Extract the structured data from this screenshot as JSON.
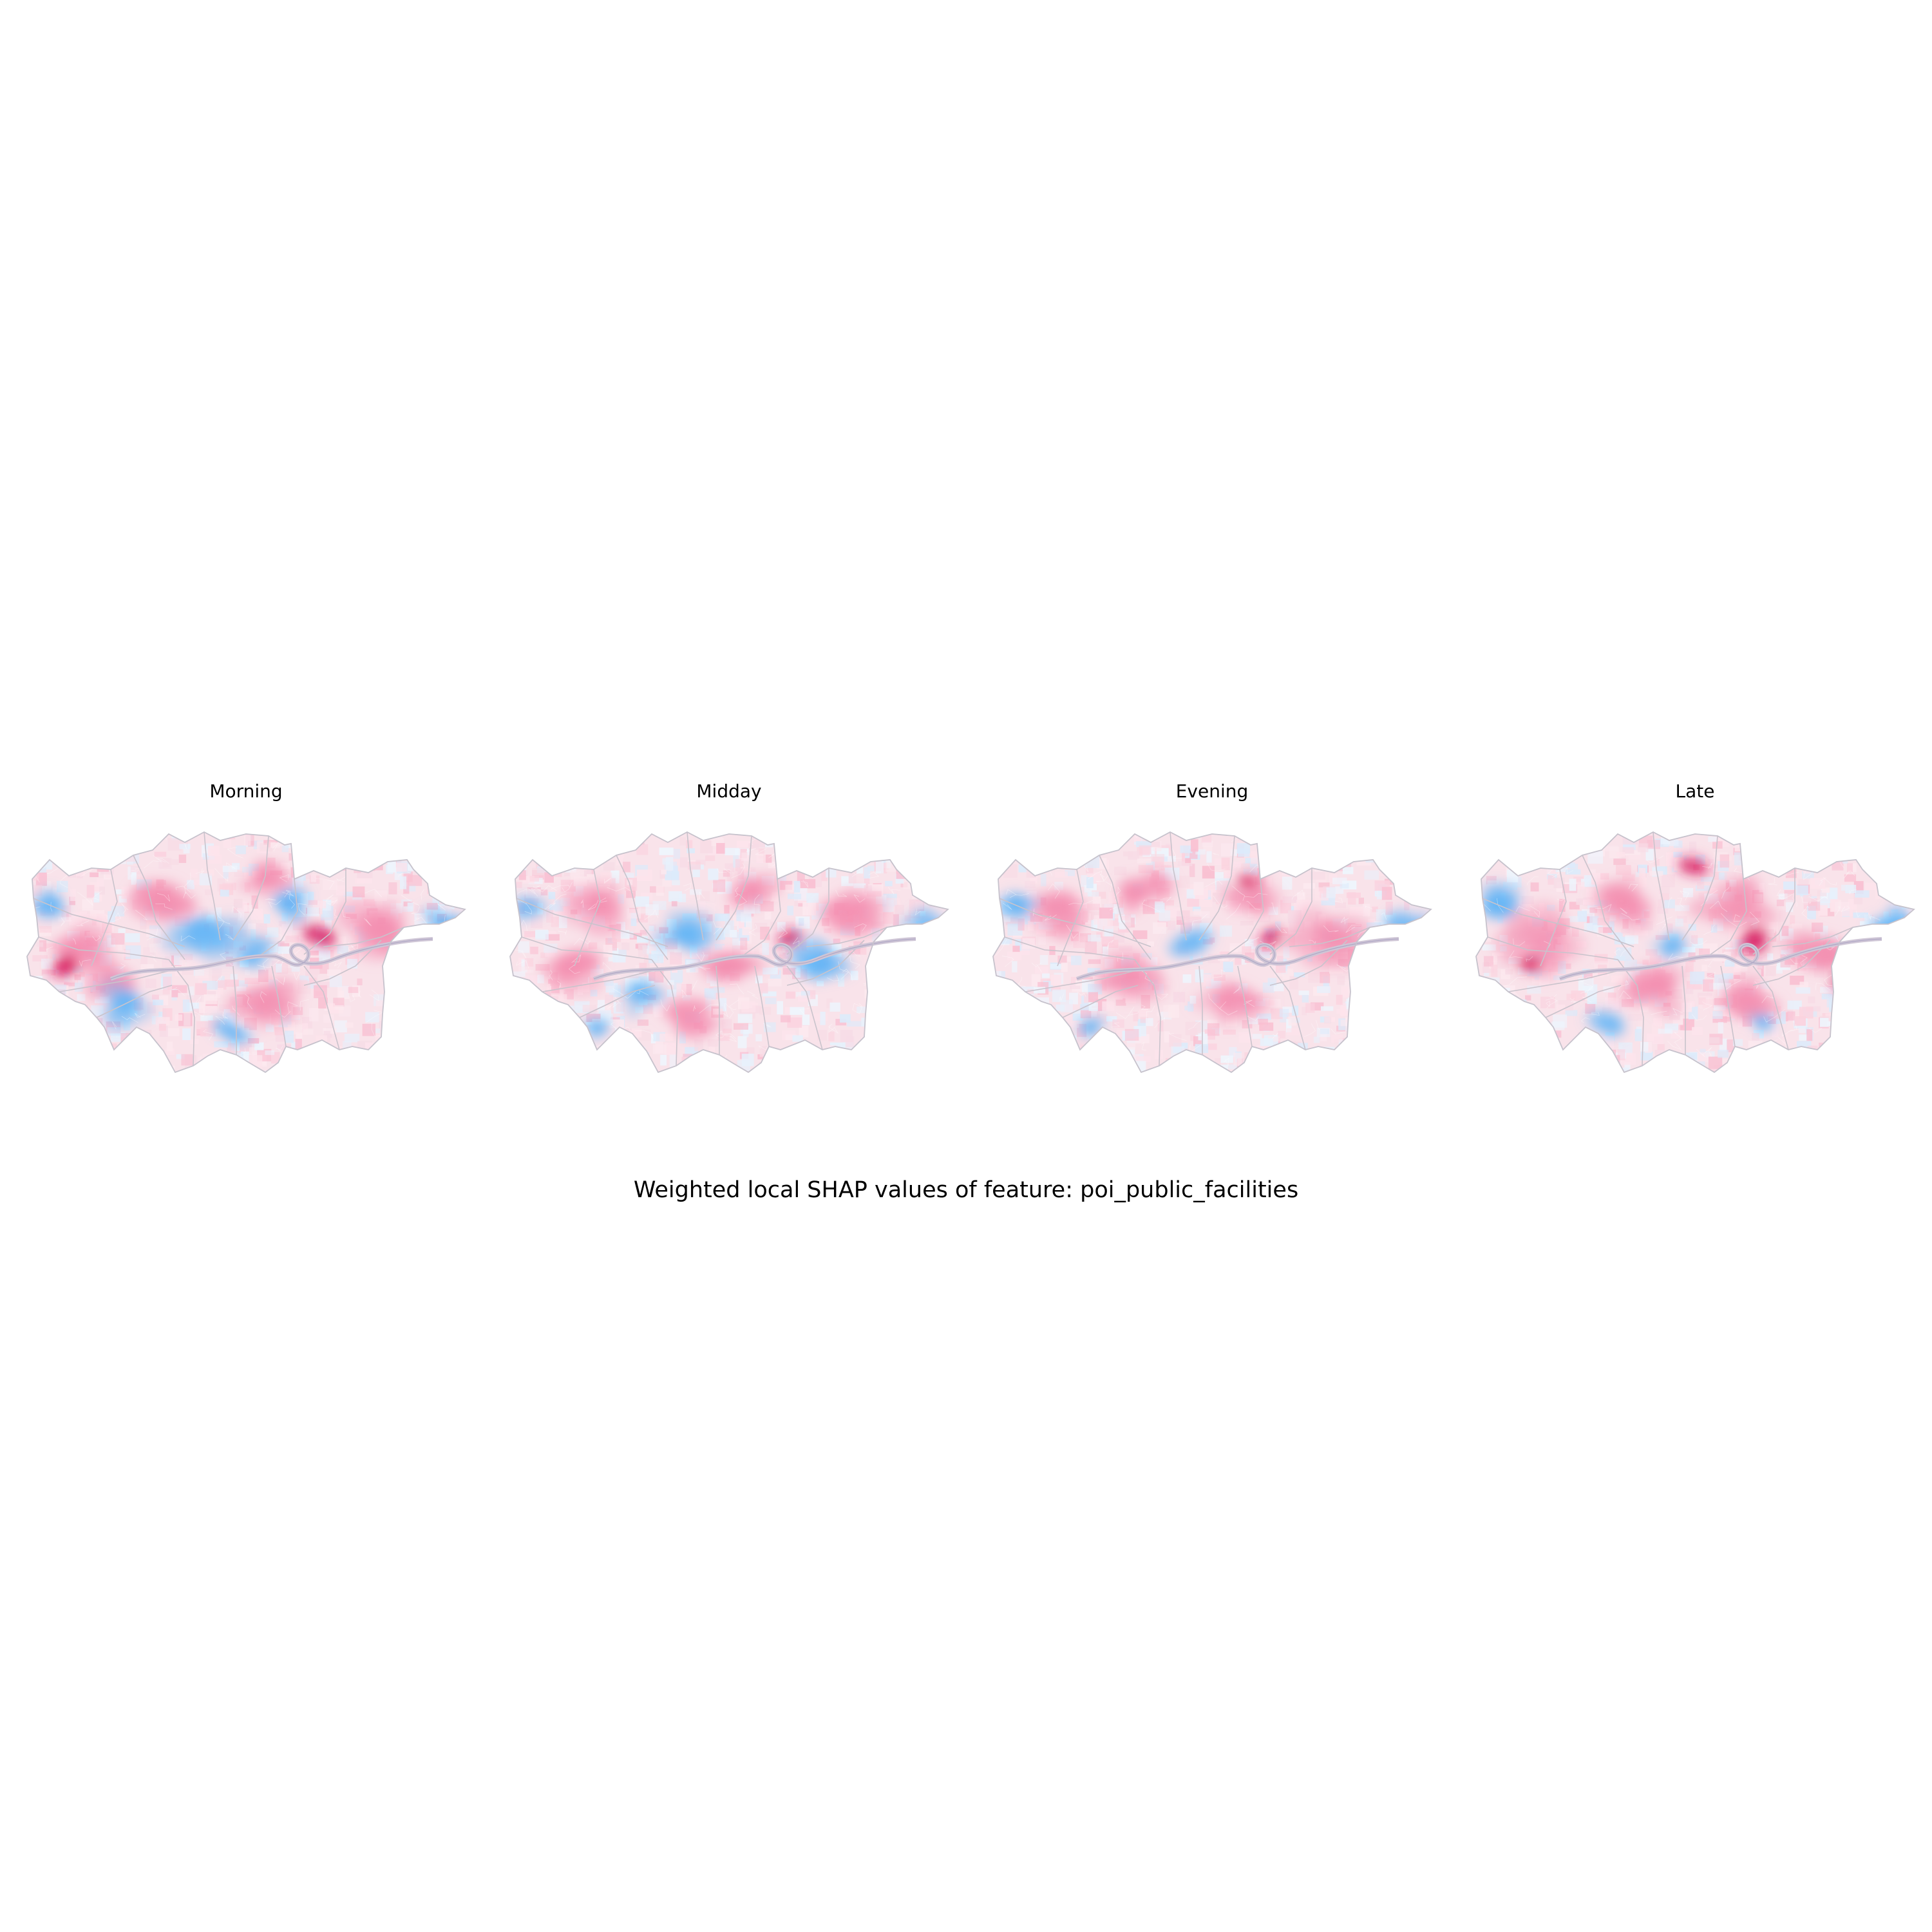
{
  "figure": {
    "title": "Weighted local SHAP values of feature: poi_public_facilities"
  },
  "panels": [
    {
      "title": "Morning",
      "hotspots": [
        {
          "k": "pink",
          "u": 0.32,
          "v": 0.3,
          "s": 0.09
        },
        {
          "k": "pink",
          "u": 0.55,
          "v": 0.2,
          "s": 0.07
        },
        {
          "k": "pink",
          "u": 0.12,
          "v": 0.48,
          "s": 0.08
        },
        {
          "k": "deep",
          "u": 0.66,
          "v": 0.44,
          "s": 0.05
        },
        {
          "k": "deep",
          "u": 0.08,
          "v": 0.55,
          "s": 0.05
        },
        {
          "k": "pink",
          "u": 0.8,
          "v": 0.4,
          "s": 0.1
        },
        {
          "k": "pink",
          "u": 0.55,
          "v": 0.7,
          "s": 0.1
        },
        {
          "k": "pink",
          "u": 0.2,
          "v": 0.62,
          "s": 0.07
        },
        {
          "k": "blue",
          "u": 0.4,
          "v": 0.42,
          "s": 0.1
        },
        {
          "k": "blue",
          "u": 0.22,
          "v": 0.7,
          "s": 0.07
        },
        {
          "k": "blue",
          "u": 0.53,
          "v": 0.5,
          "s": 0.06
        },
        {
          "k": "blue",
          "u": 0.6,
          "v": 0.3,
          "s": 0.06
        },
        {
          "k": "blue",
          "u": 0.47,
          "v": 0.82,
          "s": 0.05
        },
        {
          "k": "blue",
          "u": 0.05,
          "v": 0.32,
          "s": 0.06
        },
        {
          "k": "blue",
          "u": 0.95,
          "v": 0.38,
          "s": 0.06
        }
      ]
    },
    {
      "title": "Midday",
      "hotspots": [
        {
          "k": "pink",
          "u": 0.2,
          "v": 0.3,
          "s": 0.09
        },
        {
          "k": "pink",
          "u": 0.55,
          "v": 0.25,
          "s": 0.07
        },
        {
          "k": "pink",
          "u": 0.15,
          "v": 0.55,
          "s": 0.09
        },
        {
          "k": "pink",
          "u": 0.5,
          "v": 0.55,
          "s": 0.08
        },
        {
          "k": "pink",
          "u": 0.78,
          "v": 0.35,
          "s": 0.09
        },
        {
          "k": "deep",
          "u": 0.64,
          "v": 0.44,
          "s": 0.04
        },
        {
          "k": "pink",
          "u": 0.4,
          "v": 0.75,
          "s": 0.08
        },
        {
          "k": "blue",
          "u": 0.4,
          "v": 0.42,
          "s": 0.08
        },
        {
          "k": "blue",
          "u": 0.7,
          "v": 0.55,
          "s": 0.08
        },
        {
          "k": "blue",
          "u": 0.3,
          "v": 0.68,
          "s": 0.06
        },
        {
          "k": "blue",
          "u": 0.05,
          "v": 0.32,
          "s": 0.05
        },
        {
          "k": "blue",
          "u": 0.95,
          "v": 0.38,
          "s": 0.06
        },
        {
          "k": "blue",
          "u": 0.2,
          "v": 0.8,
          "s": 0.04
        }
      ]
    },
    {
      "title": "Evening",
      "hotspots": [
        {
          "k": "pink",
          "u": 0.15,
          "v": 0.35,
          "s": 0.1
        },
        {
          "k": "pink",
          "u": 0.35,
          "v": 0.25,
          "s": 0.08
        },
        {
          "k": "pink",
          "u": 0.6,
          "v": 0.25,
          "s": 0.08
        },
        {
          "k": "pink",
          "u": 0.75,
          "v": 0.45,
          "s": 0.1
        },
        {
          "k": "pink",
          "u": 0.3,
          "v": 0.6,
          "s": 0.09
        },
        {
          "k": "pink",
          "u": 0.55,
          "v": 0.7,
          "s": 0.09
        },
        {
          "k": "deep",
          "u": 0.64,
          "v": 0.44,
          "s": 0.04
        },
        {
          "k": "deep",
          "u": 0.58,
          "v": 0.2,
          "s": 0.03
        },
        {
          "k": "blue",
          "u": 0.45,
          "v": 0.45,
          "s": 0.06
        },
        {
          "k": "blue",
          "u": 0.05,
          "v": 0.3,
          "s": 0.06
        },
        {
          "k": "blue",
          "u": 0.95,
          "v": 0.38,
          "s": 0.06
        },
        {
          "k": "blue",
          "u": 0.22,
          "v": 0.8,
          "s": 0.04
        }
      ]
    },
    {
      "title": "Late",
      "hotspots": [
        {
          "k": "pink",
          "u": 0.15,
          "v": 0.45,
          "s": 0.11
        },
        {
          "k": "pink",
          "u": 0.35,
          "v": 0.3,
          "s": 0.09
        },
        {
          "k": "pink",
          "u": 0.6,
          "v": 0.3,
          "s": 0.1
        },
        {
          "k": "pink",
          "u": 0.8,
          "v": 0.5,
          "s": 0.1
        },
        {
          "k": "pink",
          "u": 0.4,
          "v": 0.65,
          "s": 0.1
        },
        {
          "k": "pink",
          "u": 0.6,
          "v": 0.7,
          "s": 0.09
        },
        {
          "k": "deep",
          "u": 0.64,
          "v": 0.44,
          "s": 0.05
        },
        {
          "k": "deep",
          "u": 0.12,
          "v": 0.55,
          "s": 0.04
        },
        {
          "k": "deep",
          "u": 0.85,
          "v": 0.62,
          "s": 0.04
        },
        {
          "k": "deep",
          "u": 0.5,
          "v": 0.15,
          "s": 0.04
        },
        {
          "k": "blue",
          "u": 0.05,
          "v": 0.3,
          "s": 0.07
        },
        {
          "k": "blue",
          "u": 0.95,
          "v": 0.38,
          "s": 0.06
        },
        {
          "k": "blue",
          "u": 0.45,
          "v": 0.48,
          "s": 0.05
        },
        {
          "k": "blue",
          "u": 0.3,
          "v": 0.78,
          "s": 0.05
        },
        {
          "k": "blue",
          "u": 0.65,
          "v": 0.78,
          "s": 0.04
        }
      ]
    }
  ]
}
